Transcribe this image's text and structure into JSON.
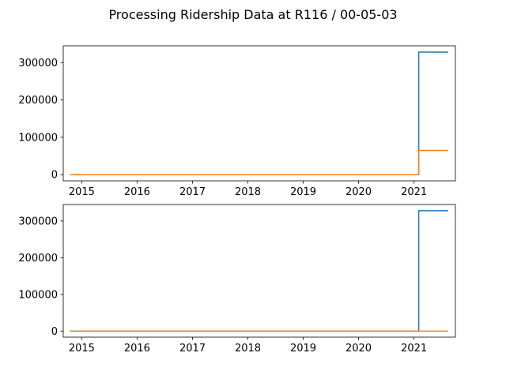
{
  "figure": {
    "title": "Processing Ridership Data at R116 / 00-05-03"
  },
  "chart_data": [
    {
      "type": "line",
      "step": true,
      "xlabel": "",
      "ylabel": "",
      "xlim": [
        "2014-09-01",
        "2021-10-01"
      ],
      "ylim": [
        -16500,
        345000
      ],
      "xticks": [
        "2015",
        "2016",
        "2017",
        "2018",
        "2019",
        "2020",
        "2021"
      ],
      "yticks": [
        0,
        100000,
        200000,
        300000
      ],
      "grid": false,
      "series": [
        {
          "color": "#1f77b4",
          "points": [
            [
              "2014-10-15",
              0
            ],
            [
              "2021-02-01",
              0
            ],
            [
              "2021-02-01",
              328000
            ],
            [
              "2021-08-15",
              328000
            ]
          ]
        },
        {
          "color": "#ff7f0e",
          "points": [
            [
              "2014-10-15",
              0
            ],
            [
              "2021-02-01",
              0
            ],
            [
              "2021-02-01",
              65000
            ],
            [
              "2021-08-15",
              65000
            ]
          ]
        }
      ]
    },
    {
      "type": "line",
      "step": true,
      "xlabel": "",
      "ylabel": "",
      "xlim": [
        "2014-09-01",
        "2021-10-01"
      ],
      "ylim": [
        -16500,
        345000
      ],
      "xticks": [
        "2015",
        "2016",
        "2017",
        "2018",
        "2019",
        "2020",
        "2021"
      ],
      "yticks": [
        0,
        100000,
        200000,
        300000
      ],
      "grid": false,
      "series": [
        {
          "color": "#1f77b4",
          "points": [
            [
              "2014-10-15",
              0
            ],
            [
              "2021-02-01",
              0
            ],
            [
              "2021-02-01",
              328000
            ],
            [
              "2021-08-15",
              328000
            ]
          ]
        },
        {
          "color": "#ff7f0e",
          "points": [
            [
              "2014-10-15",
              0
            ],
            [
              "2021-08-15",
              0
            ]
          ]
        }
      ]
    }
  ]
}
